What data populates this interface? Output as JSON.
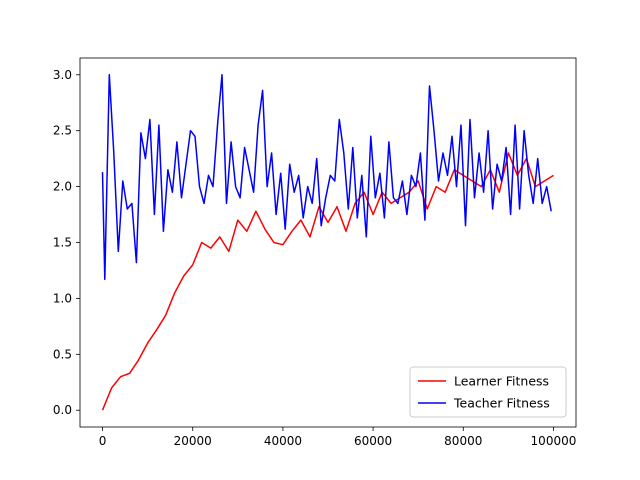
{
  "chart_data": {
    "type": "line",
    "title": "",
    "xlabel": "",
    "ylabel": "",
    "xlim": [
      -5000,
      105000
    ],
    "ylim": [
      -0.15,
      3.15
    ],
    "xticks": [
      0,
      20000,
      40000,
      60000,
      80000,
      100000
    ],
    "xtick_labels": [
      "0",
      "20000",
      "40000",
      "60000",
      "80000",
      "100000"
    ],
    "yticks": [
      0.0,
      0.5,
      1.0,
      1.5,
      2.0,
      2.5,
      3.0
    ],
    "ytick_labels": [
      "0.0",
      "0.5",
      "1.0",
      "1.5",
      "2.0",
      "2.5",
      "3.0"
    ],
    "grid": false,
    "legend_position": "lower-right",
    "series": [
      {
        "name": "Learner Fitness",
        "color": "#ff0000",
        "x": [
          0,
          2000,
          4000,
          6000,
          8000,
          10000,
          12000,
          14000,
          16000,
          18000,
          20000,
          22000,
          24000,
          26000,
          28000,
          30000,
          32000,
          34000,
          36000,
          38000,
          40000,
          42000,
          44000,
          46000,
          48000,
          50000,
          52000,
          54000,
          56000,
          58000,
          60000,
          62000,
          64000,
          66000,
          68000,
          70000,
          72000,
          74000,
          76000,
          78000,
          80000,
          82000,
          84000,
          86000,
          88000,
          90000,
          92000,
          94000,
          96000,
          98000,
          100000
        ],
        "y": [
          0.0,
          0.2,
          0.3,
          0.33,
          0.45,
          0.6,
          0.72,
          0.85,
          1.05,
          1.2,
          1.3,
          1.5,
          1.45,
          1.55,
          1.42,
          1.7,
          1.6,
          1.78,
          1.62,
          1.5,
          1.48,
          1.6,
          1.7,
          1.55,
          1.82,
          1.68,
          1.82,
          1.6,
          1.85,
          1.95,
          1.75,
          1.95,
          1.85,
          1.9,
          1.95,
          2.05,
          1.8,
          2.0,
          1.95,
          2.15,
          2.1,
          2.05,
          2.0,
          2.15,
          1.95,
          2.3,
          2.1,
          2.25,
          2.0,
          2.05,
          2.1
        ]
      },
      {
        "name": "Teacher Fitness",
        "color": "#0000ff",
        "x": [
          0,
          500,
          1500,
          2500,
          3500,
          4500,
          5500,
          6500,
          7500,
          8500,
          9500,
          10500,
          11500,
          12500,
          13500,
          14500,
          15500,
          16500,
          17500,
          18500,
          19500,
          20500,
          21500,
          22500,
          23500,
          24500,
          25500,
          26500,
          27500,
          28500,
          29500,
          30500,
          31500,
          32500,
          33500,
          34500,
          35500,
          36500,
          37500,
          38500,
          39500,
          40500,
          41500,
          42500,
          43500,
          44500,
          45500,
          46500,
          47500,
          48500,
          49500,
          50500,
          51500,
          52500,
          53500,
          54500,
          55500,
          56500,
          57500,
          58500,
          59500,
          60500,
          61500,
          62500,
          63500,
          64500,
          65500,
          66500,
          67500,
          68500,
          69500,
          70500,
          71500,
          72500,
          73500,
          74500,
          75500,
          76500,
          77500,
          78500,
          79500,
          80500,
          81500,
          82500,
          83500,
          84500,
          85500,
          86500,
          87500,
          88500,
          89500,
          90500,
          91500,
          92500,
          93500,
          94500,
          95500,
          96500,
          97500,
          98500,
          99500
        ],
        "y": [
          2.13,
          1.17,
          3.0,
          2.3,
          1.42,
          2.05,
          1.8,
          1.85,
          1.32,
          2.48,
          2.25,
          2.6,
          1.75,
          2.55,
          1.6,
          2.15,
          1.95,
          2.4,
          1.9,
          2.2,
          2.5,
          2.45,
          2.0,
          1.85,
          2.1,
          2.0,
          2.55,
          3.0,
          1.85,
          2.4,
          2.0,
          1.9,
          2.35,
          2.15,
          1.95,
          2.55,
          2.86,
          2.0,
          2.3,
          1.75,
          2.12,
          1.62,
          2.2,
          1.95,
          2.1,
          1.72,
          2.0,
          1.85,
          2.25,
          1.65,
          1.9,
          2.1,
          2.05,
          2.6,
          2.3,
          1.8,
          2.35,
          1.72,
          2.1,
          1.55,
          2.45,
          1.9,
          2.12,
          1.72,
          2.4,
          1.9,
          1.85,
          2.05,
          1.75,
          2.1,
          2.0,
          2.3,
          1.7,
          2.9,
          2.5,
          2.05,
          2.3,
          2.1,
          2.45,
          2.0,
          2.55,
          1.65,
          2.6,
          1.9,
          2.3,
          1.95,
          2.5,
          1.8,
          2.2,
          2.05,
          2.35,
          1.75,
          2.55,
          1.8,
          2.5,
          2.1,
          1.85,
          2.25,
          1.85,
          2.0,
          1.78
        ]
      }
    ]
  }
}
